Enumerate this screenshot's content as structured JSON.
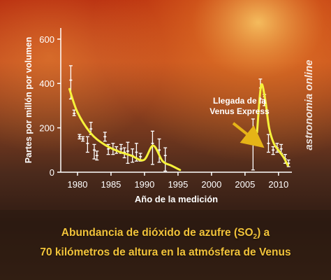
{
  "watermark": "astronomia online",
  "caption": {
    "line1_pre": "Abundancia de dióxido de azufre (SO",
    "line1_sub": "2",
    "line1_post": ") a",
    "line2": "70 kilómetros de altura en la atmósfera de Venus"
  },
  "chart_data": {
    "type": "scatter",
    "xlabel": "Año de la medición",
    "ylabel": "Partes por millón por volumen",
    "xlim": [
      1977.5,
      2012
    ],
    "ylim": [
      0,
      650
    ],
    "xticks": [
      1980,
      1985,
      1990,
      1995,
      2000,
      2005,
      2010
    ],
    "yticks": [
      0,
      200,
      400,
      600
    ],
    "grid": false,
    "annotation": {
      "lines": [
        "Llegada de la",
        "Venus Express"
      ],
      "x": 2007,
      "y": 160
    },
    "measurements": [
      {
        "x": 1979.0,
        "y": 415,
        "low": 330,
        "high": 480
      },
      {
        "x": 1979.5,
        "y": 265,
        "low": 255,
        "high": 280
      },
      {
        "x": 1980.3,
        "y": 160,
        "low": 150,
        "high": 170
      },
      {
        "x": 1980.8,
        "y": 150,
        "low": 140,
        "high": 160
      },
      {
        "x": 1981.5,
        "y": 130,
        "low": 90,
        "high": 160
      },
      {
        "x": 1982.0,
        "y": 195,
        "low": 170,
        "high": 225
      },
      {
        "x": 1982.5,
        "y": 100,
        "low": 60,
        "high": 125
      },
      {
        "x": 1982.9,
        "y": 75,
        "low": 55,
        "high": 95
      },
      {
        "x": 1984.1,
        "y": 160,
        "low": 140,
        "high": 180
      },
      {
        "x": 1984.6,
        "y": 105,
        "low": 80,
        "high": 125
      },
      {
        "x": 1985.3,
        "y": 105,
        "low": 80,
        "high": 130
      },
      {
        "x": 1985.8,
        "y": 100,
        "low": 85,
        "high": 115
      },
      {
        "x": 1986.5,
        "y": 105,
        "low": 85,
        "high": 125
      },
      {
        "x": 1987.0,
        "y": 90,
        "low": 65,
        "high": 110
      },
      {
        "x": 1987.5,
        "y": 95,
        "low": 40,
        "high": 135
      },
      {
        "x": 1988.2,
        "y": 75,
        "low": 45,
        "high": 105
      },
      {
        "x": 1988.8,
        "y": 90,
        "low": 50,
        "high": 130
      },
      {
        "x": 1989.4,
        "y": 70,
        "low": 50,
        "high": 85
      },
      {
        "x": 1991.2,
        "y": 130,
        "low": 35,
        "high": 185
      },
      {
        "x": 1992.2,
        "y": 100,
        "low": 45,
        "high": 150
      },
      {
        "x": 1993.1,
        "y": 75,
        "low": 5,
        "high": 110
      },
      {
        "x": 2006.2,
        "y": 135,
        "low": 10,
        "high": 240
      },
      {
        "x": 2007.3,
        "y": 380,
        "low": 330,
        "high": 420
      },
      {
        "x": 2007.9,
        "y": 340,
        "low": 300,
        "high": 350
      },
      {
        "x": 2008.5,
        "y": 130,
        "low": 90,
        "high": 170
      },
      {
        "x": 2009.2,
        "y": 100,
        "low": 80,
        "high": 115
      },
      {
        "x": 2009.8,
        "y": 110,
        "low": 90,
        "high": 130
      },
      {
        "x": 2010.4,
        "y": 105,
        "low": 85,
        "high": 125
      },
      {
        "x": 2011.0,
        "y": 60,
        "low": 40,
        "high": 80
      },
      {
        "x": 2011.5,
        "y": 40,
        "low": 25,
        "high": 55
      }
    ],
    "trend_segments": [
      {
        "x": [
          1978.8,
          1980,
          1982,
          1984,
          1986,
          1988,
          1989.9,
          1991.3,
          1992.7,
          1994,
          1995.3
        ],
        "y": [
          375,
          270,
          175,
          125,
          95,
          75,
          55,
          120,
          50,
          30,
          10
        ]
      },
      {
        "x": [
          2006.8,
          2007.4,
          2008.0,
          2008.6,
          2009.3,
          2010.1,
          2010.8,
          2011.4
        ],
        "y": [
          180,
          390,
          330,
          200,
          130,
          95,
          65,
          30
        ]
      }
    ],
    "colors": {
      "trend": "#f6f23a",
      "points": "#ffffff",
      "axis": "#ffffff",
      "annotation_arrow": "#e6b417",
      "caption": "#f2c33a"
    }
  }
}
